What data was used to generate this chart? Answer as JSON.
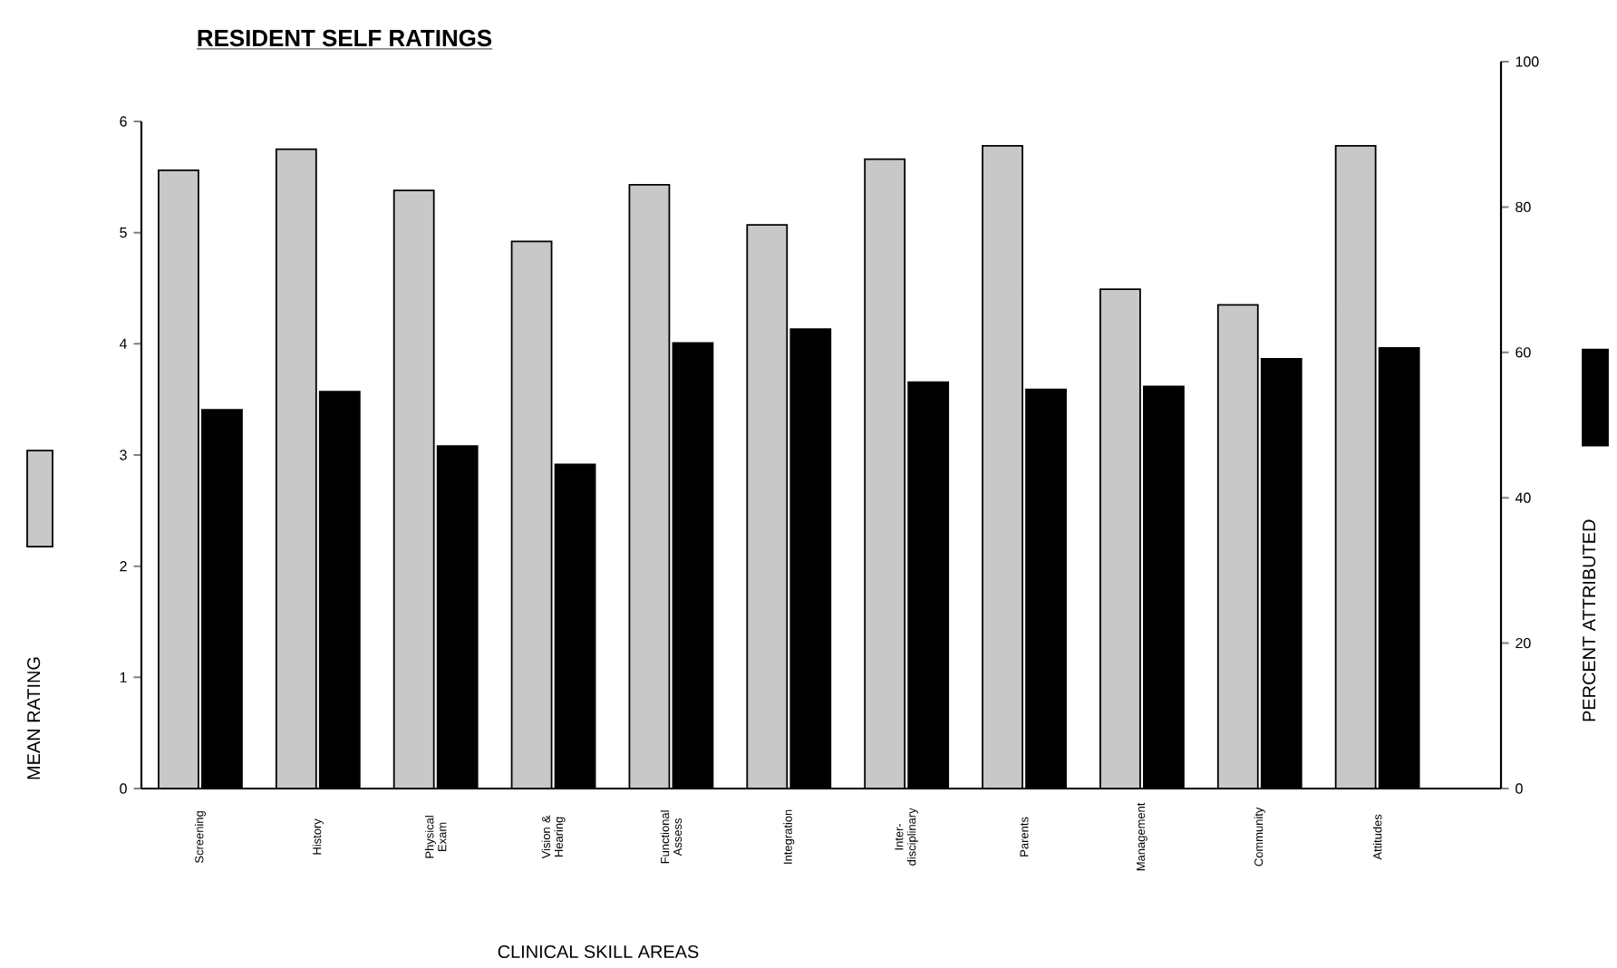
{
  "chart_data": {
    "type": "bar",
    "title": "RESIDENT SELF RATINGS",
    "xlabel": "CLINICAL SKILL AREAS",
    "ylabel": "MEAN RATING",
    "y2label": "PERCENT ATTRIBUTED",
    "categories": [
      "Screening",
      "History",
      "Physical Exam",
      "Vision & Hearing",
      "Functional Assess",
      "Integration",
      "Inter-disciplinary",
      "Parents",
      "Management",
      "Community",
      "Attitudes"
    ],
    "series": [
      {
        "color": "#c8c8c8",
        "axis": "y",
        "values": [
          5.56,
          5.75,
          5.38,
          4.92,
          5.43,
          5.07,
          5.66,
          5.78,
          4.49,
          4.35,
          5.78
        ]
      },
      {
        "color": "#000000",
        "axis": "y2",
        "values": [
          52.1,
          54.6,
          47.1,
          44.6,
          61.3,
          63.2,
          55.9,
          54.9,
          55.3,
          59.1,
          60.6
        ]
      }
    ],
    "ylim": [
      0,
      6
    ],
    "yticks": [
      0,
      1,
      2,
      3,
      4,
      5,
      6
    ],
    "y2lim": [
      0,
      100
    ],
    "y2ticks": [
      0,
      20,
      40,
      60,
      80,
      100
    ]
  }
}
